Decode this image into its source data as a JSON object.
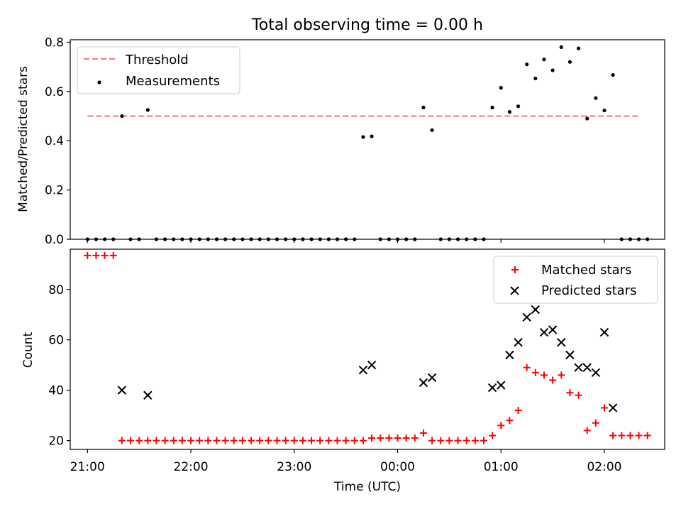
{
  "title": "Total observing time = 0.00 h",
  "chart_data": [
    {
      "type": "scatter",
      "ylabel": "Matched/Predicted stars",
      "xlabel": "",
      "ylim": [
        0,
        0.81
      ],
      "y_ticks": [
        "0.0",
        "0.2",
        "0.4",
        "0.6",
        "0.8"
      ],
      "y_tick_values": [
        0,
        0.2,
        0.4,
        0.6,
        0.8
      ],
      "grid": false,
      "legend": "top-left",
      "threshold": {
        "name": "Threshold",
        "value": 0.5,
        "x_range": [
          "21:00",
          "02:20"
        ],
        "color": "#f08080"
      },
      "measurements": {
        "name": "Measurements",
        "color": "#000000",
        "points": [
          [
            "21:00",
            0
          ],
          [
            "21:05",
            0
          ],
          [
            "21:10",
            0
          ],
          [
            "21:15",
            0
          ],
          [
            "21:20",
            0.5
          ],
          [
            "21:25",
            0
          ],
          [
            "21:30",
            0
          ],
          [
            "21:35",
            0.525
          ],
          [
            "21:40",
            0
          ],
          [
            "21:45",
            0
          ],
          [
            "21:50",
            0
          ],
          [
            "21:55",
            0
          ],
          [
            "22:00",
            0
          ],
          [
            "22:05",
            0
          ],
          [
            "22:10",
            0
          ],
          [
            "22:15",
            0
          ],
          [
            "22:20",
            0
          ],
          [
            "22:25",
            0
          ],
          [
            "22:30",
            0
          ],
          [
            "22:35",
            0
          ],
          [
            "22:40",
            0
          ],
          [
            "22:45",
            0
          ],
          [
            "22:50",
            0
          ],
          [
            "22:55",
            0
          ],
          [
            "23:00",
            0
          ],
          [
            "23:05",
            0
          ],
          [
            "23:10",
            0
          ],
          [
            "23:15",
            0
          ],
          [
            "23:20",
            0
          ],
          [
            "23:25",
            0
          ],
          [
            "23:30",
            0
          ],
          [
            "23:35",
            0
          ],
          [
            "23:40",
            0.415
          ],
          [
            "23:45",
            0.418
          ],
          [
            "23:50",
            0
          ],
          [
            "23:55",
            0
          ],
          [
            "00:00",
            0
          ],
          [
            "00:05",
            0
          ],
          [
            "00:10",
            0
          ],
          [
            "00:15",
            0.535
          ],
          [
            "00:20",
            0.443
          ],
          [
            "00:25",
            0
          ],
          [
            "00:30",
            0
          ],
          [
            "00:35",
            0
          ],
          [
            "00:40",
            0
          ],
          [
            "00:45",
            0
          ],
          [
            "00:50",
            0
          ],
          [
            "00:55",
            0.535
          ],
          [
            "01:00",
            0.615
          ],
          [
            "01:05",
            0.517
          ],
          [
            "01:10",
            0.54
          ],
          [
            "01:15",
            0.71
          ],
          [
            "01:20",
            0.653
          ],
          [
            "01:25",
            0.73
          ],
          [
            "01:30",
            0.686
          ],
          [
            "01:35",
            0.78
          ],
          [
            "01:40",
            0.72
          ],
          [
            "01:45",
            0.775
          ],
          [
            "01:50",
            0.49
          ],
          [
            "01:55",
            0.573
          ],
          [
            "02:00",
            0.523
          ],
          [
            "02:05",
            0.667
          ],
          [
            "02:10",
            0
          ],
          [
            "02:15",
            0
          ],
          [
            "02:20",
            0
          ],
          [
            "02:25",
            0
          ]
        ]
      }
    },
    {
      "type": "scatter",
      "ylabel": "Count",
      "xlabel": "Time (UTC)",
      "ylim": [
        16.5,
        96
      ],
      "y_ticks": [
        "20",
        "40",
        "60",
        "80"
      ],
      "y_tick_values": [
        20,
        40,
        60,
        80
      ],
      "x_ticks": [
        "21:00",
        "22:00",
        "23:00",
        "00:00",
        "01:00",
        "02:00"
      ],
      "grid": false,
      "legend": "top-right",
      "series": [
        {
          "name": "Matched stars",
          "marker": "plus",
          "color": "#ff0000",
          "points": [
            [
              "21:00",
              93.5
            ],
            [
              "21:05",
              93.5
            ],
            [
              "21:10",
              93.5
            ],
            [
              "21:15",
              93.5
            ],
            [
              "21:20",
              20
            ],
            [
              "21:25",
              20
            ],
            [
              "21:30",
              20
            ],
            [
              "21:35",
              20
            ],
            [
              "21:40",
              20
            ],
            [
              "21:45",
              20
            ],
            [
              "21:50",
              20
            ],
            [
              "21:55",
              20
            ],
            [
              "22:00",
              20
            ],
            [
              "22:05",
              20
            ],
            [
              "22:10",
              20
            ],
            [
              "22:15",
              20
            ],
            [
              "22:20",
              20
            ],
            [
              "22:25",
              20
            ],
            [
              "22:30",
              20
            ],
            [
              "22:35",
              20
            ],
            [
              "22:40",
              20
            ],
            [
              "22:45",
              20
            ],
            [
              "22:50",
              20
            ],
            [
              "22:55",
              20
            ],
            [
              "23:00",
              20
            ],
            [
              "23:05",
              20
            ],
            [
              "23:10",
              20
            ],
            [
              "23:15",
              20
            ],
            [
              "23:20",
              20
            ],
            [
              "23:25",
              20
            ],
            [
              "23:30",
              20
            ],
            [
              "23:35",
              20
            ],
            [
              "23:40",
              20
            ],
            [
              "23:45",
              21
            ],
            [
              "23:50",
              21
            ],
            [
              "23:55",
              21
            ],
            [
              "00:00",
              21
            ],
            [
              "00:05",
              21
            ],
            [
              "00:10",
              21
            ],
            [
              "00:15",
              23
            ],
            [
              "00:20",
              20
            ],
            [
              "00:25",
              20
            ],
            [
              "00:30",
              20
            ],
            [
              "00:35",
              20
            ],
            [
              "00:40",
              20
            ],
            [
              "00:45",
              20
            ],
            [
              "00:50",
              20
            ],
            [
              "00:55",
              22
            ],
            [
              "01:00",
              26
            ],
            [
              "01:05",
              28
            ],
            [
              "01:10",
              32
            ],
            [
              "01:15",
              49
            ],
            [
              "01:20",
              47
            ],
            [
              "01:25",
              46
            ],
            [
              "01:30",
              44
            ],
            [
              "01:35",
              46
            ],
            [
              "01:40",
              39
            ],
            [
              "01:45",
              38
            ],
            [
              "01:50",
              24
            ],
            [
              "01:55",
              27
            ],
            [
              "02:00",
              33
            ],
            [
              "02:05",
              22
            ],
            [
              "02:10",
              22
            ],
            [
              "02:15",
              22
            ],
            [
              "02:20",
              22
            ],
            [
              "02:25",
              22
            ]
          ]
        },
        {
          "name": "Predicted stars",
          "marker": "x",
          "color": "#000000",
          "points": [
            [
              "21:20",
              40
            ],
            [
              "21:35",
              38
            ],
            [
              "23:40",
              48
            ],
            [
              "23:45",
              50
            ],
            [
              "00:15",
              43
            ],
            [
              "00:20",
              45
            ],
            [
              "00:55",
              41
            ],
            [
              "01:00",
              42
            ],
            [
              "01:05",
              54
            ],
            [
              "01:10",
              59
            ],
            [
              "01:15",
              69
            ],
            [
              "01:20",
              72
            ],
            [
              "01:25",
              63
            ],
            [
              "01:30",
              64
            ],
            [
              "01:35",
              59
            ],
            [
              "01:40",
              54
            ],
            [
              "01:45",
              49
            ],
            [
              "01:50",
              49
            ],
            [
              "01:55",
              47
            ],
            [
              "02:00",
              63
            ],
            [
              "02:05",
              33
            ]
          ]
        }
      ]
    }
  ]
}
